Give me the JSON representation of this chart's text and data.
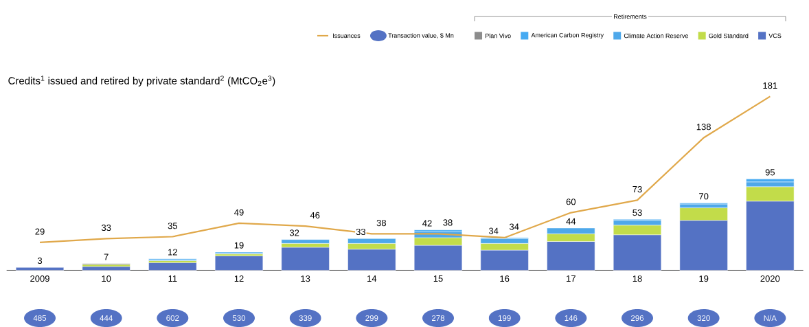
{
  "chart_data": [
    {
      "type": "bar",
      "stacked": true,
      "title": "Credits$^{1}$ issued and retired by private standard$^{2}$ (MtCO$_{2}$e$^{3}$)",
      "legend_title": "Retirements",
      "legend": "top",
      "categories": [
        "2009",
        "10",
        "11",
        "12",
        "13",
        "14",
        "15",
        "16",
        "17",
        "18",
        "19",
        "2020"
      ],
      "series": [
        {
          "name": "VCS",
          "color": "#5472c4",
          "values": [
            3,
            4,
            8,
            15,
            24,
            22,
            26,
            21,
            30,
            37,
            52,
            72
          ]
        },
        {
          "name": "Gold Standard",
          "color": "#c2dc4a",
          "values": [
            0,
            2,
            2,
            2,
            4,
            6,
            8,
            7,
            8,
            10,
            13,
            15
          ]
        },
        {
          "name": "Climate Action Reserve",
          "color": "#4ea8ea",
          "values": [
            0,
            0,
            1,
            1,
            4,
            5,
            6,
            5,
            6,
            5,
            4,
            5
          ]
        },
        {
          "name": "American Carbon Registry",
          "color": "#45aaf2",
          "values": [
            0,
            0,
            1,
            1,
            0,
            0,
            2,
            1,
            0,
            1,
            1,
            3
          ]
        },
        {
          "name": "Plan Vivo",
          "color": "#8c8c8c",
          "values": [
            0,
            1,
            0,
            0,
            0,
            0,
            0,
            0,
            0,
            0,
            0,
            0
          ]
        },
        {
          "name": "Issuances",
          "type": "line",
          "color": "#e0a84a",
          "values": [
            29,
            33,
            35,
            49,
            46,
            38,
            38,
            34,
            60,
            73,
            138,
            181
          ],
          "value_labels": [
            "29",
            "33",
            "35",
            "49",
            "46",
            "38",
            "38",
            "34",
            "60",
            "73",
            "138",
            "181"
          ]
        }
      ],
      "totals": [
        "3",
        "7",
        "12",
        "19",
        "32",
        "33",
        "42",
        "34",
        "44",
        "53",
        "70",
        "95"
      ]
    },
    {
      "type": "other",
      "legend": "top",
      "data_labels": true,
      "categories": [
        null,
        null,
        null,
        null,
        null,
        null,
        null,
        null,
        null,
        null,
        null,
        null
      ],
      "series": [
        {
          "name": "Transaction value, $ Mn",
          "color": "#5472c4",
          "values": [
            485,
            444,
            602,
            530,
            339,
            299,
            278,
            199,
            146,
            296,
            320,
            null
          ],
          "value_labels": [
            "485",
            "444",
            "602",
            "530",
            "339",
            "299",
            "278",
            "199",
            "146",
            "296",
            "320",
            "N/A"
          ]
        }
      ]
    }
  ]
}
